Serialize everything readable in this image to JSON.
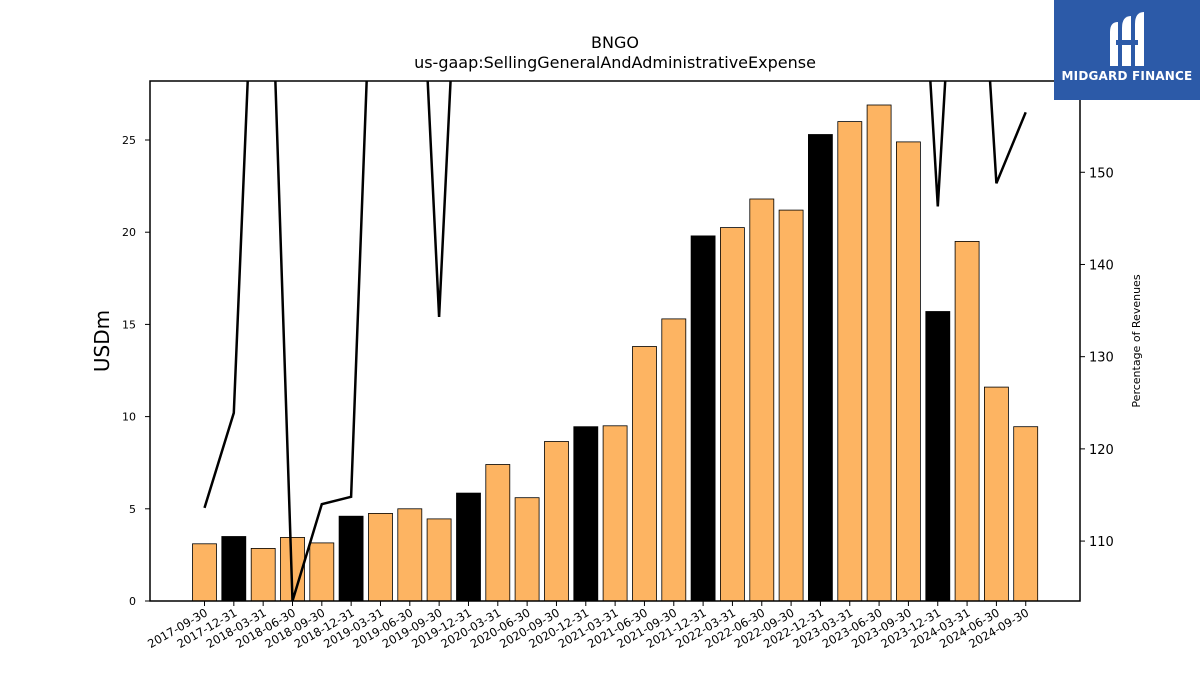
{
  "logo": {
    "text": "MIDGARD FINANCE"
  },
  "chart_data": {
    "type": "bar",
    "title": "BNGO",
    "subtitle": "us-gaap:SellingGeneralAndAdministrativeExpense",
    "ylabel": "USDm",
    "y2label": "Percentage of Revenues",
    "ylim": [
      0,
      28.2
    ],
    "y2lim": [
      103.5,
      159.9
    ],
    "yticks": [
      0,
      5,
      10,
      15,
      20,
      25
    ],
    "y2ticks": [
      110,
      120,
      130,
      140,
      150
    ],
    "categories": [
      "2017-09-30",
      "2017-12-31",
      "2018-03-31",
      "2018-06-30",
      "2018-09-30",
      "2018-12-31",
      "2019-03-31",
      "2019-06-30",
      "2019-09-30",
      "2019-12-31",
      "2020-03-31",
      "2020-06-30",
      "2020-09-30",
      "2020-12-31",
      "2021-03-31",
      "2021-06-30",
      "2021-09-30",
      "2021-12-31",
      "2022-03-31",
      "2022-06-30",
      "2022-09-30",
      "2022-12-31",
      "2023-03-31",
      "2023-06-30",
      "2023-09-30",
      "2023-12-31",
      "2024-03-31",
      "2024-06-30",
      "2024-09-30"
    ],
    "values": [
      3.1,
      3.5,
      2.85,
      3.45,
      3.15,
      4.6,
      4.75,
      5.0,
      4.45,
      5.85,
      7.4,
      5.6,
      8.65,
      9.45,
      9.5,
      13.8,
      15.3,
      19.8,
      20.25,
      21.8,
      21.2,
      25.3,
      26.0,
      26.9,
      24.9,
      15.7,
      19.5,
      11.6,
      9.45
    ],
    "highlight": [
      false,
      true,
      false,
      false,
      false,
      true,
      false,
      false,
      false,
      true,
      false,
      false,
      false,
      true,
      false,
      false,
      false,
      true,
      false,
      false,
      false,
      true,
      false,
      false,
      false,
      true,
      false,
      false,
      false
    ],
    "line_values": [
      113.6,
      123.9,
      200,
      103.5,
      114.0,
      114.8,
      200,
      200,
      134.3,
      200,
      200,
      200,
      200,
      200,
      200,
      200,
      200,
      200,
      200,
      200,
      200,
      200,
      200,
      200,
      200,
      146.3,
      200,
      148.8,
      156.5
    ],
    "colors": {
      "bar": "#fdb462",
      "highlight": "#000000",
      "line": "#000000"
    },
    "grid": false
  }
}
